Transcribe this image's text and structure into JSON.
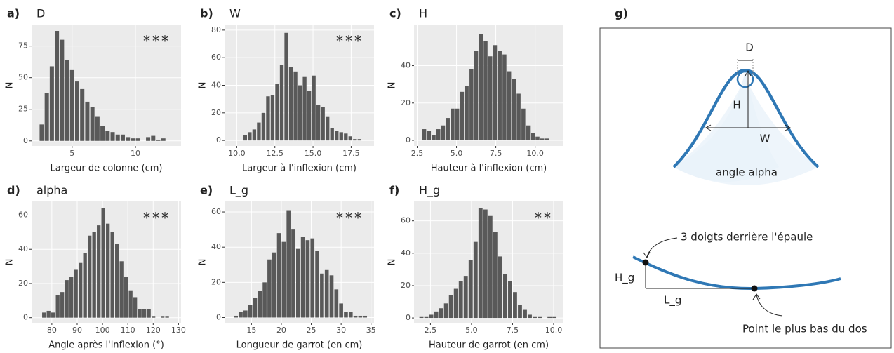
{
  "chart_data": [
    {
      "type": "histogram",
      "panel": "a)",
      "title": "D",
      "annotation": "***",
      "xlabel": "Largeur de colonne (cm)",
      "ylabel": "N",
      "color": "#595959",
      "grid": true,
      "bins": [
        2.4,
        2.8,
        3.2,
        3.6,
        4.0,
        4.4,
        4.8,
        5.2,
        5.6,
        6.0,
        6.4,
        6.8,
        7.2,
        7.6,
        8.0,
        8.4,
        8.8,
        9.2,
        9.6,
        10.0,
        10.4,
        10.8,
        11.2,
        11.6,
        12.0,
        12.4
      ],
      "counts": [
        13,
        38,
        59,
        87,
        80,
        64,
        56,
        47,
        41,
        31,
        27,
        19,
        12,
        8,
        7,
        5,
        5,
        3,
        2,
        2,
        0,
        3,
        4,
        1,
        2
      ],
      "xlim": [
        1.8,
        13.6
      ],
      "ylim": [
        -4,
        92
      ],
      "xticks": [
        5,
        10
      ],
      "yticks": [
        0,
        25,
        50,
        75
      ]
    },
    {
      "type": "histogram",
      "panel": "b)",
      "title": "W",
      "annotation": "***",
      "xlabel": "Largeur à l'inflexion (cm)",
      "ylabel": "N",
      "color": "#595959",
      "grid": true,
      "bins": [
        10.4,
        10.7,
        11.0,
        11.3,
        11.6,
        11.9,
        12.2,
        12.5,
        12.8,
        13.1,
        13.4,
        13.7,
        14.0,
        14.3,
        14.6,
        14.9,
        15.2,
        15.5,
        15.8,
        16.1,
        16.4,
        16.7,
        17.0,
        17.3,
        17.6,
        17.9,
        18.2
      ],
      "counts": [
        4,
        6,
        8,
        13,
        20,
        32,
        33,
        41,
        55,
        78,
        53,
        50,
        40,
        46,
        36,
        47,
        26,
        24,
        17,
        9,
        7,
        6,
        5,
        3,
        1,
        1
      ],
      "xlim": [
        9.2,
        19.0
      ],
      "ylim": [
        -4,
        84
      ],
      "xticks": [
        {
          "value": 10,
          "label": "10.0"
        },
        12.5,
        {
          "value": 15,
          "label": "15.0"
        },
        17.5
      ],
      "yticks": [
        0,
        20,
        40,
        60,
        80
      ]
    },
    {
      "type": "histogram",
      "panel": "c)",
      "title": "H",
      "xlabel": "Hauteur à l'inflexion (cm)",
      "ylabel": "N",
      "color": "#595959",
      "grid": true,
      "bins": [
        2.8,
        3.1,
        3.4,
        3.7,
        4.0,
        4.3,
        4.6,
        4.9,
        5.2,
        5.5,
        5.8,
        6.1,
        6.4,
        6.7,
        7.0,
        7.3,
        7.6,
        7.9,
        8.2,
        8.5,
        8.8,
        9.1,
        9.4,
        9.7,
        10.0,
        10.3,
        10.6,
        10.9
      ],
      "counts": [
        6,
        5,
        3,
        6,
        8,
        12,
        17,
        17,
        26,
        29,
        38,
        48,
        57,
        53,
        45,
        51,
        48,
        46,
        37,
        33,
        25,
        17,
        8,
        4,
        2,
        1,
        1
      ],
      "xlim": [
        2.3,
        11.8
      ],
      "ylim": [
        -3,
        62
      ],
      "xticks": [
        2.5,
        {
          "value": 5,
          "label": "5.0"
        },
        7.5,
        {
          "value": 10,
          "label": "10.0"
        }
      ],
      "yticks": [
        0,
        20,
        40
      ]
    },
    {
      "type": "histogram",
      "panel": "d)",
      "title": "alpha",
      "annotation": "***",
      "xlabel": "Angle après l'inflexion (°)",
      "ylabel": "N",
      "color": "#595959",
      "grid": true,
      "bins": [
        76,
        77.8,
        79.6,
        81.4,
        83.2,
        85,
        86.8,
        88.6,
        90.4,
        92.2,
        94,
        95.8,
        97.6,
        99.4,
        101.2,
        103,
        104.8,
        106.6,
        108.4,
        110.2,
        112,
        113.8,
        115.6,
        117.4,
        119.2,
        121,
        122.8,
        124.6,
        126.4
      ],
      "counts": [
        3,
        4,
        3,
        13,
        15,
        22,
        24,
        28,
        32,
        38,
        48,
        50,
        54,
        64,
        55,
        50,
        43,
        33,
        24,
        16,
        12,
        5,
        5,
        5,
        1,
        0,
        1,
        1
      ],
      "xlim": [
        72,
        131
      ],
      "ylim": [
        -3,
        68
      ],
      "xticks": [
        80,
        90,
        100,
        110,
        120,
        130
      ],
      "yticks": [
        0,
        20,
        40,
        60
      ]
    },
    {
      "type": "histogram",
      "panel": "e)",
      "title": "L_g",
      "annotation": "***",
      "xlabel": "Longueur de garrot (en cm)",
      "ylabel": "N",
      "color": "#595959",
      "grid": true,
      "bins": [
        12,
        12.8,
        13.6,
        14.4,
        15.2,
        16,
        16.8,
        17.6,
        18.4,
        19.2,
        20,
        20.8,
        21.6,
        22.4,
        23.2,
        24,
        24.8,
        25.6,
        26.4,
        27.2,
        28,
        28.8,
        29.6,
        30.4,
        31.2,
        32,
        32.8,
        33.6,
        34.4
      ],
      "counts": [
        1,
        3,
        4,
        7,
        11,
        15,
        20,
        33,
        37,
        48,
        43,
        61,
        50,
        39,
        46,
        44,
        45,
        38,
        25,
        27,
        24,
        16,
        8,
        3,
        3,
        1,
        1,
        1
      ],
      "xlim": [
        10.5,
        35.5
      ],
      "ylim": [
        -3,
        66
      ],
      "xticks": [
        15,
        20,
        25,
        30,
        35
      ],
      "yticks": [
        0,
        20,
        40,
        60
      ]
    },
    {
      "type": "histogram",
      "panel": "f)",
      "title": "H_g",
      "annotation": "**",
      "xlabel": "Hauteur de garrot (en cm)",
      "ylabel": "N",
      "color": "#595959",
      "grid": true,
      "bins": [
        1.8,
        2.1,
        2.4,
        2.7,
        3.0,
        3.3,
        3.6,
        3.9,
        4.2,
        4.5,
        4.8,
        5.1,
        5.4,
        5.7,
        6.0,
        6.3,
        6.6,
        6.9,
        7.2,
        7.5,
        7.8,
        8.1,
        8.4,
        8.7,
        9.0,
        9.3,
        9.6,
        9.9,
        10.2
      ],
      "counts": [
        1,
        1,
        2,
        4,
        6,
        9,
        14,
        18,
        23,
        26,
        36,
        47,
        68,
        67,
        63,
        53,
        38,
        27,
        23,
        16,
        8,
        5,
        2,
        1,
        1,
        0,
        1,
        1
      ],
      "xlim": [
        1.5,
        10.6
      ],
      "ylim": [
        -3,
        72
      ],
      "xticks": [
        2.5,
        {
          "value": 5,
          "label": "5.0"
        },
        7.5,
        {
          "value": 10,
          "label": "10.0"
        }
      ],
      "yticks": [
        0,
        20,
        40,
        60
      ]
    }
  ],
  "diagram": {
    "panel": "g)",
    "d_label": "D",
    "h_label": "H",
    "w_label": "W",
    "angle_label": "angle alpha",
    "shoulder_note": "3 doigts derrière l'épaule",
    "hg_label": "H_g",
    "lg_label": "L_g",
    "low_point_note": "Point le plus bas du dos"
  }
}
